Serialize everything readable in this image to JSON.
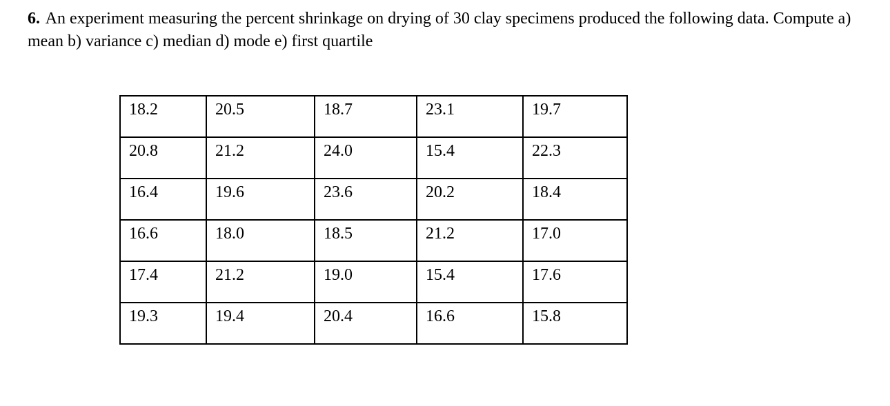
{
  "problem": {
    "number": "6.",
    "text": "An experiment measuring the percent shrinkage on drying of 30 clay specimens produced the following data. Compute a) mean b) variance c) median d) mode e) first quartile"
  },
  "table": {
    "rows": [
      [
        "18.2",
        "20.5",
        "18.7",
        "23.1",
        "19.7"
      ],
      [
        "20.8",
        "21.2",
        "24.0",
        "15.4",
        "22.3"
      ],
      [
        "16.4",
        "19.6",
        "23.6",
        "20.2",
        "18.4"
      ],
      [
        "16.6",
        "18.0",
        "18.5",
        "21.2",
        "17.0"
      ],
      [
        "17.4",
        "21.2",
        "19.0",
        "15.4",
        "17.6"
      ],
      [
        "19.3",
        "19.4",
        "20.4",
        "16.6",
        "15.8"
      ]
    ]
  },
  "colors": {
    "text": "#000000",
    "background": "#ffffff",
    "table_border": "#000000"
  }
}
